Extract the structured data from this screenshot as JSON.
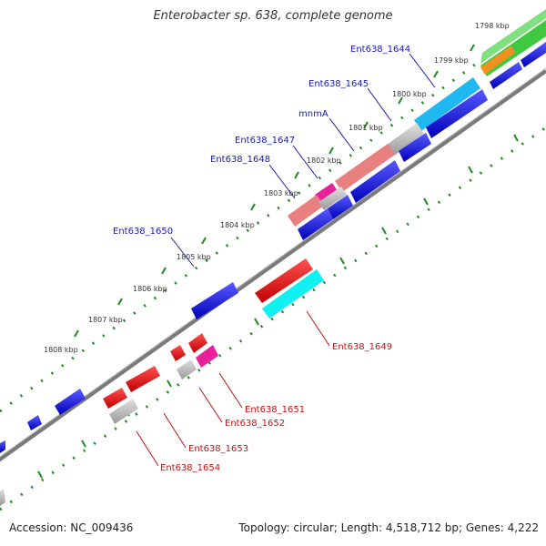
{
  "title": "Enterobacter sp. 638, complete genome",
  "footer": {
    "accession": "Accession: NC_009436",
    "summary": "Topology: circular; Length: 4,518,712 bp; Genes: 4,222"
  },
  "colors": {
    "backbone": "#8a8a8a",
    "tick": "#1e8c1e",
    "label_up": "#1a1ab0",
    "label_down": "#c81010",
    "forward_gene": "#1010d8",
    "reverse_gene": "#e41010",
    "pseudo_gray": "#b8b8b8",
    "salmon": "#e88080",
    "magenta": "#e8209a",
    "sky": "#20b8f0",
    "cyan": "#10f0f0",
    "green": "#40c840",
    "orange": "#f09020"
  },
  "kbp_labels": [
    "1798 kbp",
    "1799 kbp",
    "1800 kbp",
    "1801 kbp",
    "1802 kbp",
    "1803 kbp",
    "1804 kbp",
    "1805 kbp",
    "1806 kbp",
    "1807 kbp",
    "1808 kbp"
  ],
  "gene_labels_top": [
    "Ent638_1644",
    "Ent638_1645",
    "mnmA",
    "Ent638_1647",
    "Ent638_1648",
    "Ent638_1650"
  ],
  "gene_labels_bottom": [
    "Ent638_1649",
    "Ent638_1651",
    "Ent638_1652",
    "Ent638_1653",
    "Ent638_1654"
  ]
}
